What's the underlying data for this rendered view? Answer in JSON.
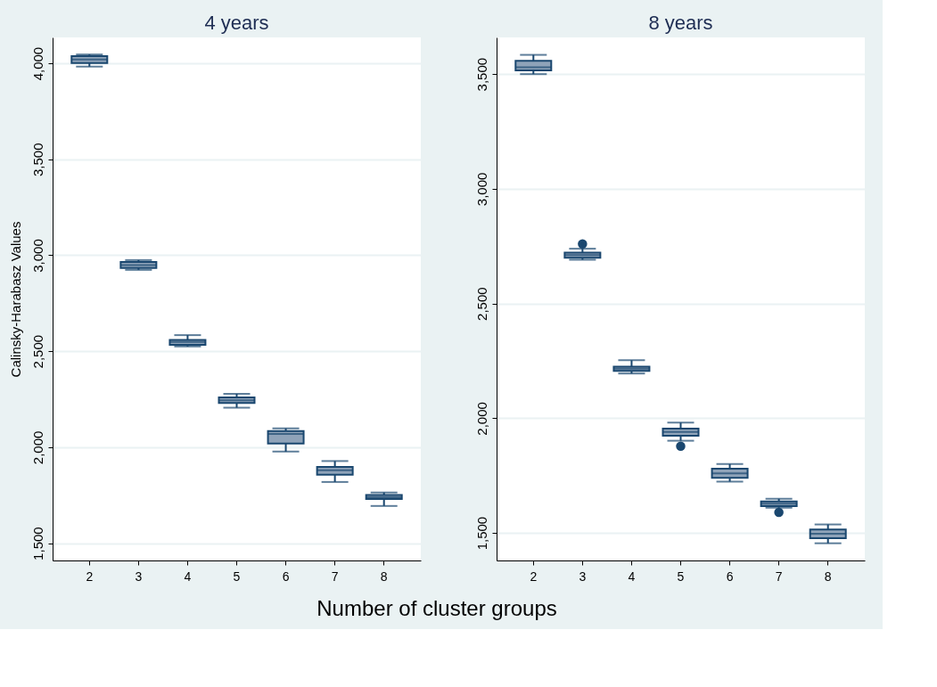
{
  "chart_data": [
    {
      "type": "box",
      "title": "4 years",
      "ylabel": "Calinsky-Harabasz Values",
      "xlabel": "Number of cluster groups",
      "categories": [
        "2",
        "3",
        "4",
        "5",
        "6",
        "7",
        "8"
      ],
      "ylim": [
        1410,
        4135
      ],
      "yticks": [
        {
          "value": 1500,
          "label": "1,500"
        },
        {
          "value": 2000,
          "label": "2,000"
        },
        {
          "value": 2500,
          "label": "2,500"
        },
        {
          "value": 3000,
          "label": "3,000"
        },
        {
          "value": 3500,
          "label": "3,500"
        },
        {
          "value": 4000,
          "label": "4,000"
        }
      ],
      "grid": "y",
      "series": [
        {
          "color": "#8fa3b9",
          "boxes": [
            {
              "low": 3983,
              "q1": 4001,
              "median": 4020,
              "q3": 4037,
              "high": 4046
            },
            {
              "low": 2924,
              "q1": 2934,
              "median": 2949,
              "q3": 2965,
              "high": 2975
            },
            {
              "low": 2525,
              "q1": 2534,
              "median": 2548,
              "q3": 2559,
              "high": 2584
            },
            {
              "low": 2206,
              "q1": 2231,
              "median": 2245,
              "q3": 2260,
              "high": 2278
            },
            {
              "low": 1977,
              "q1": 2019,
              "median": 2069,
              "q3": 2084,
              "high": 2098
            },
            {
              "low": 1819,
              "q1": 1857,
              "median": 1880,
              "q3": 1897,
              "high": 1928
            },
            {
              "low": 1694,
              "q1": 1730,
              "median": 1740,
              "q3": 1751,
              "high": 1764
            }
          ]
        }
      ]
    },
    {
      "type": "box",
      "title": "8 years",
      "categories": [
        "2",
        "3",
        "4",
        "5",
        "6",
        "7",
        "8"
      ],
      "ylim": [
        1380,
        3660
      ],
      "yticks": [
        {
          "value": 1500,
          "label": "1,500"
        },
        {
          "value": 2000,
          "label": "2,000"
        },
        {
          "value": 2500,
          "label": "2,500"
        },
        {
          "value": 3000,
          "label": "3,000"
        },
        {
          "value": 3500,
          "label": "3,500"
        }
      ],
      "grid": "y",
      "series": [
        {
          "color": "#8fa3b9",
          "boxes": [
            {
              "low": 3500,
              "q1": 3516,
              "median": 3530,
              "q3": 3558,
              "high": 3584
            },
            {
              "low": 2691,
              "q1": 2700,
              "median": 2711,
              "q3": 2722,
              "high": 2739,
              "outliers": [
                2760
              ]
            },
            {
              "low": 2195,
              "q1": 2206,
              "median": 2216,
              "q3": 2225,
              "high": 2253
            },
            {
              "low": 1902,
              "q1": 1924,
              "median": 1940,
              "q3": 1955,
              "high": 1981,
              "outliers": [
                1878
              ]
            },
            {
              "low": 1724,
              "q1": 1740,
              "median": 1760,
              "q3": 1780,
              "high": 1800
            },
            {
              "low": 1610,
              "q1": 1617,
              "median": 1628,
              "q3": 1637,
              "high": 1649,
              "outliers": [
                1590
              ]
            },
            {
              "low": 1455,
              "q1": 1477,
              "median": 1497,
              "q3": 1515,
              "high": 1537
            }
          ]
        }
      ]
    }
  ]
}
